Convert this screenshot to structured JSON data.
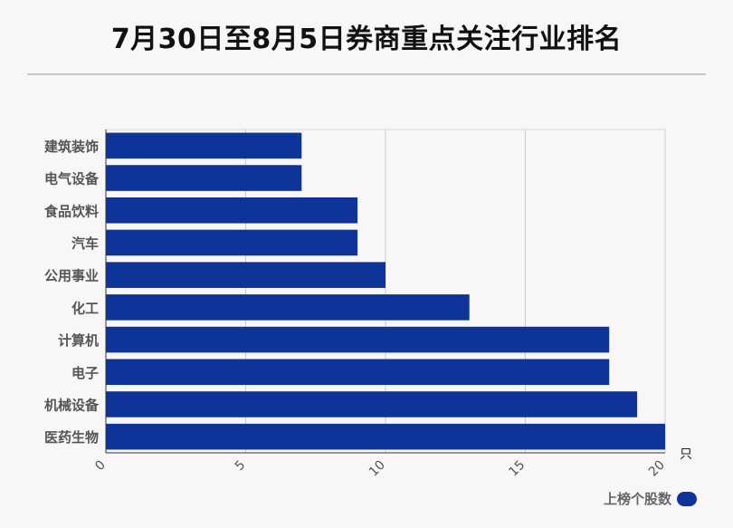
{
  "title": "7月30日至8月5日券商重点关注行业排名",
  "chart_data": {
    "type": "bar",
    "orientation": "horizontal",
    "categories": [
      "建筑装饰",
      "电气设备",
      "食品饮料",
      "汽车",
      "公用事业",
      "化工",
      "计算机",
      "电子",
      "机械设备",
      "医药生物"
    ],
    "series": [
      {
        "name": "上榜个股数",
        "values": [
          7,
          7,
          9,
          9,
          10,
          13,
          18,
          18,
          19,
          20
        ]
      }
    ],
    "xlim": [
      0,
      20
    ],
    "xticks": [
      "0",
      "5",
      "10",
      "15",
      "20"
    ],
    "xunit": "只",
    "color": "#0e3499",
    "grid": true,
    "legend_position": "bottom-right"
  }
}
